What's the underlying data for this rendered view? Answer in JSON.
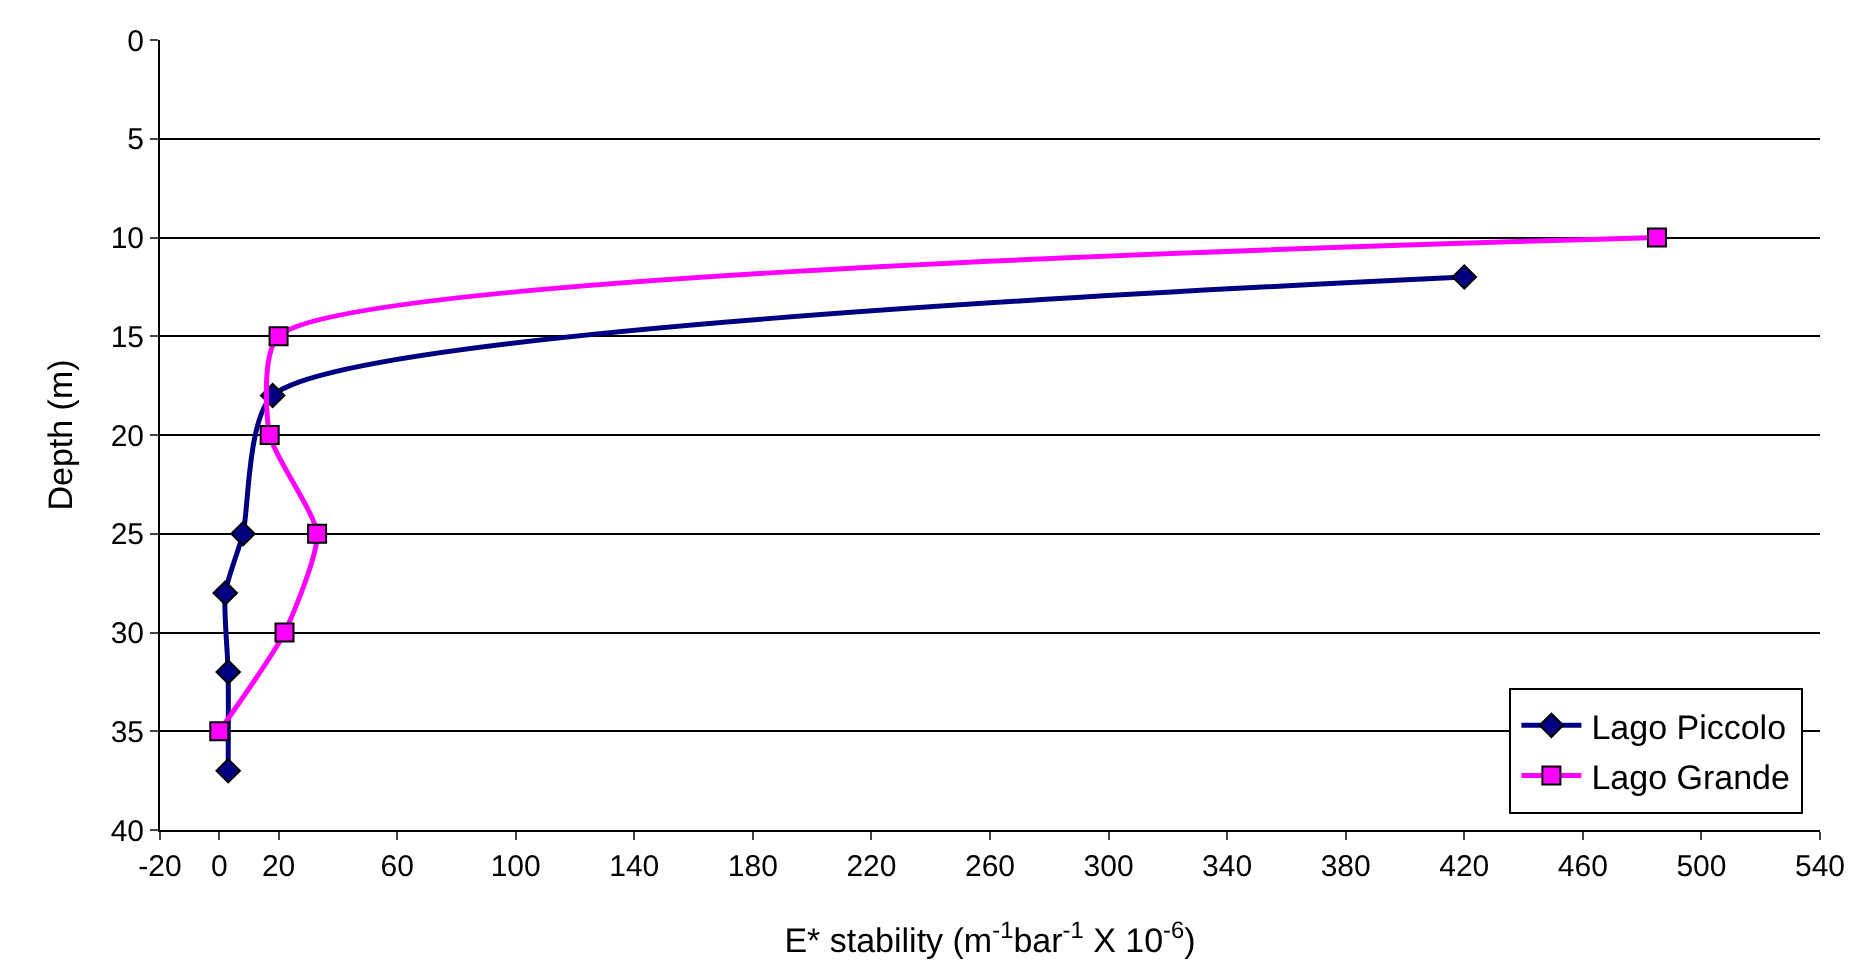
{
  "chart_data": {
    "type": "line",
    "xlabel": "E* stability (m$^{-1}$bar$^{-1}$ X 10$^{-6}$)",
    "ylabel": "Depth (m)",
    "xlim": [
      -20,
      540
    ],
    "xticks": [
      -20,
      0,
      20,
      60,
      100,
      140,
      180,
      220,
      260,
      300,
      340,
      380,
      420,
      460,
      500,
      540
    ],
    "ylim": [
      40,
      0
    ],
    "yticks": [
      0,
      5,
      10,
      15,
      20,
      25,
      30,
      35,
      40
    ],
    "grid": "y",
    "legend": "bottom right",
    "line_style": "solid",
    "series": [
      {
        "name": "Lago Piccolo",
        "color": "#000080",
        "marker": "diamond",
        "x": [
          420,
          18,
          8,
          2,
          3,
          3
        ],
        "values": [
          12,
          18,
          25,
          28,
          32,
          37
        ]
      },
      {
        "name": "Lago Grande",
        "color": "#ff00ff",
        "marker": "square",
        "x": [
          485,
          20,
          17,
          33,
          22,
          0
        ],
        "values": [
          10,
          15,
          20,
          25,
          30,
          35
        ]
      }
    ]
  }
}
